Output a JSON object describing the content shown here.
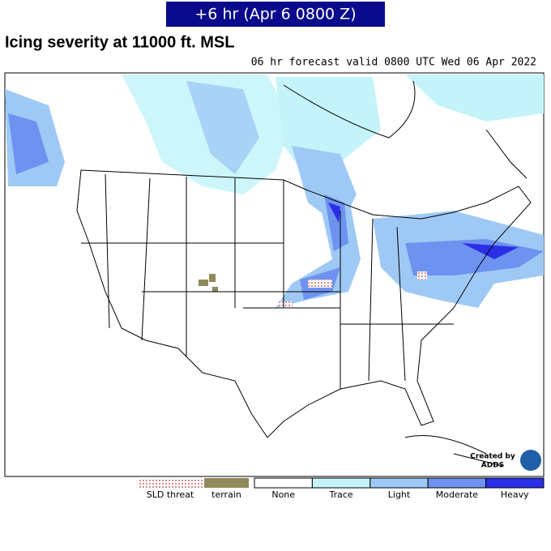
{
  "header": {
    "badge": "+6 hr (Apr 6 0800 Z)",
    "title": "Icing severity at 11000 ft. MSL",
    "subtitle": "06 hr forecast valid 0800 UTC Wed 06 Apr 2022"
  },
  "legend": {
    "items": [
      {
        "label": "SLD threat",
        "color": "#d98a8a"
      },
      {
        "label": "terrain",
        "color": "#8f8a5c"
      },
      {
        "label": "None",
        "color": "#ffffff"
      },
      {
        "label": "Trace",
        "color": "#c4f4fa"
      },
      {
        "label": "Light",
        "color": "#9fc9f5"
      },
      {
        "label": "Moderate",
        "color": "#6e92ef"
      },
      {
        "label": "Heavy",
        "color": "#2b2fe6"
      }
    ]
  },
  "credit": {
    "line1": "Created by",
    "line2": "ADDS"
  }
}
